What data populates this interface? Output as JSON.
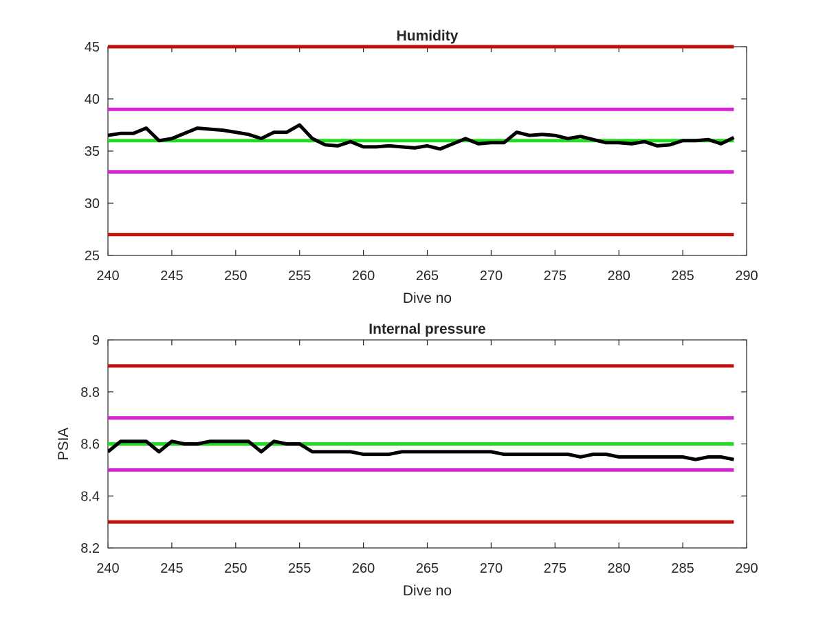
{
  "chart_data": [
    {
      "type": "line",
      "title": "Humidity",
      "xlabel": "Dive no",
      "ylabel": "",
      "xlim": [
        240,
        290
      ],
      "ylim": [
        25,
        45
      ],
      "xticks": [
        240,
        245,
        250,
        255,
        260,
        265,
        270,
        275,
        280,
        285,
        290
      ],
      "yticks": [
        25,
        30,
        35,
        40,
        45
      ],
      "grid": false,
      "legend": "none",
      "series": [
        {
          "role": "limit",
          "color": "#c0110c",
          "x": [
            240,
            289
          ],
          "y": [
            45,
            45
          ]
        },
        {
          "role": "limit",
          "color": "#c0110c",
          "x": [
            240,
            289
          ],
          "y": [
            27,
            27
          ]
        },
        {
          "role": "limit",
          "color": "#d624d6",
          "x": [
            240,
            289
          ],
          "y": [
            39,
            39
          ]
        },
        {
          "role": "limit",
          "color": "#d624d6",
          "x": [
            240,
            289
          ],
          "y": [
            33,
            33
          ]
        },
        {
          "role": "target",
          "color": "#22dd22",
          "x": [
            240,
            289
          ],
          "y": [
            36,
            36
          ]
        },
        {
          "role": "measured",
          "color": "#000000",
          "x": [
            240,
            241,
            242,
            243,
            244,
            245,
            246,
            247,
            248,
            249,
            250,
            251,
            252,
            253,
            254,
            255,
            256,
            257,
            258,
            259,
            260,
            261,
            262,
            263,
            264,
            265,
            266,
            267,
            268,
            269,
            270,
            271,
            272,
            273,
            274,
            275,
            276,
            277,
            278,
            279,
            280,
            281,
            282,
            283,
            284,
            285,
            286,
            287,
            288,
            289
          ],
          "y": [
            36.5,
            36.7,
            36.7,
            37.2,
            36.0,
            36.2,
            36.7,
            37.2,
            37.1,
            37.0,
            36.8,
            36.6,
            36.2,
            36.8,
            36.8,
            37.5,
            36.2,
            35.6,
            35.5,
            35.9,
            35.4,
            35.4,
            35.5,
            35.4,
            35.3,
            35.5,
            35.2,
            35.7,
            36.2,
            35.7,
            35.8,
            35.8,
            36.8,
            36.5,
            36.6,
            36.5,
            36.2,
            36.4,
            36.1,
            35.8,
            35.8,
            35.7,
            35.9,
            35.5,
            35.6,
            36.0,
            36.0,
            36.1,
            35.7,
            36.3
          ]
        }
      ]
    },
    {
      "type": "line",
      "title": "Internal pressure",
      "xlabel": "Dive no",
      "ylabel": "PSIA",
      "xlim": [
        240,
        290
      ],
      "ylim": [
        8.2,
        9.0
      ],
      "xticks": [
        240,
        245,
        250,
        255,
        260,
        265,
        270,
        275,
        280,
        285,
        290
      ],
      "yticks": [
        8.2,
        8.4,
        8.6,
        8.8,
        9
      ],
      "grid": false,
      "legend": "none",
      "series": [
        {
          "role": "limit",
          "color": "#c0110c",
          "x": [
            240,
            289
          ],
          "y": [
            8.9,
            8.9
          ]
        },
        {
          "role": "limit",
          "color": "#c0110c",
          "x": [
            240,
            289
          ],
          "y": [
            8.3,
            8.3
          ]
        },
        {
          "role": "limit",
          "color": "#d624d6",
          "x": [
            240,
            289
          ],
          "y": [
            8.7,
            8.7
          ]
        },
        {
          "role": "limit",
          "color": "#d624d6",
          "x": [
            240,
            289
          ],
          "y": [
            8.5,
            8.5
          ]
        },
        {
          "role": "target",
          "color": "#22dd22",
          "x": [
            240,
            289
          ],
          "y": [
            8.6,
            8.6
          ]
        },
        {
          "role": "measured",
          "color": "#000000",
          "x": [
            240,
            241,
            242,
            243,
            244,
            245,
            246,
            247,
            248,
            249,
            250,
            251,
            252,
            253,
            254,
            255,
            256,
            257,
            258,
            259,
            260,
            261,
            262,
            263,
            264,
            265,
            266,
            267,
            268,
            269,
            270,
            271,
            272,
            273,
            274,
            275,
            276,
            277,
            278,
            279,
            280,
            281,
            282,
            283,
            284,
            285,
            286,
            287,
            288,
            289
          ],
          "y": [
            8.57,
            8.61,
            8.61,
            8.61,
            8.57,
            8.61,
            8.6,
            8.6,
            8.61,
            8.61,
            8.61,
            8.61,
            8.57,
            8.61,
            8.6,
            8.6,
            8.57,
            8.57,
            8.57,
            8.57,
            8.56,
            8.56,
            8.56,
            8.57,
            8.57,
            8.57,
            8.57,
            8.57,
            8.57,
            8.57,
            8.57,
            8.56,
            8.56,
            8.56,
            8.56,
            8.56,
            8.56,
            8.55,
            8.56,
            8.56,
            8.55,
            8.55,
            8.55,
            8.55,
            8.55,
            8.55,
            8.54,
            8.55,
            8.55,
            8.54
          ]
        }
      ]
    }
  ]
}
